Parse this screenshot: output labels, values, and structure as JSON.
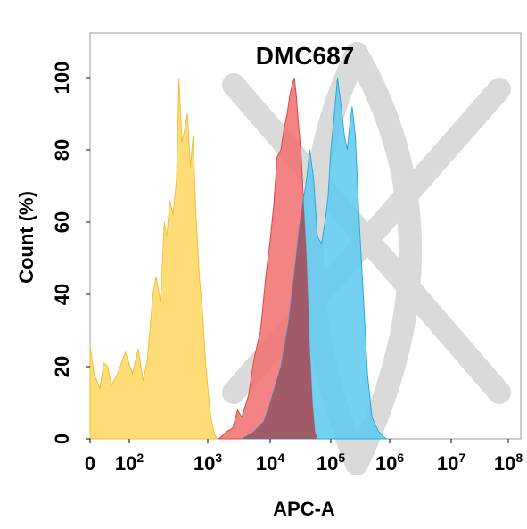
{
  "chart_data": {
    "type": "area",
    "title": "DMC687",
    "xlabel": "APC-A",
    "ylabel": "Count  (%)",
    "x_scale": "biexponential",
    "xlim": [
      0,
      100000000
    ],
    "ylim": [
      0,
      105
    ],
    "x_ticks": [
      {
        "base": "0",
        "exp": ""
      },
      {
        "base": "10",
        "exp": "2"
      },
      {
        "base": "10",
        "exp": "3"
      },
      {
        "base": "10",
        "exp": "4"
      },
      {
        "base": "10",
        "exp": "5"
      },
      {
        "base": "10",
        "exp": "6"
      },
      {
        "base": "10",
        "exp": "7"
      },
      {
        "base": "10",
        "exp": "8"
      }
    ],
    "y_ticks": [
      "0",
      "20",
      "40",
      "60",
      "80",
      "100"
    ],
    "colors": {
      "yellow": "#FFD866",
      "yellow_stroke": "#F0BE40",
      "red": "#F26D6D",
      "red_stroke": "#D84848",
      "blue": "#5CC9EE",
      "blue_stroke": "#2AA9D4",
      "overlap": "#A05A68",
      "watermark": "#BDBDBD"
    },
    "series": [
      {
        "color": "yellow",
        "points": [
          [
            0,
            26
          ],
          [
            10,
            18
          ],
          [
            25,
            14
          ],
          [
            35,
            21
          ],
          [
            45,
            20
          ],
          [
            55,
            15
          ],
          [
            70,
            18
          ],
          [
            90,
            24
          ],
          [
            110,
            18
          ],
          [
            130,
            25
          ],
          [
            150,
            16
          ],
          [
            170,
            22
          ],
          [
            200,
            40
          ],
          [
            220,
            45
          ],
          [
            250,
            38
          ],
          [
            280,
            60
          ],
          [
            300,
            56
          ],
          [
            330,
            66
          ],
          [
            360,
            62
          ],
          [
            400,
            72
          ],
          [
            430,
            100
          ],
          [
            470,
            82
          ],
          [
            500,
            85
          ],
          [
            550,
            90
          ],
          [
            600,
            75
          ],
          [
            650,
            84
          ],
          [
            700,
            64
          ],
          [
            780,
            45
          ],
          [
            850,
            36
          ],
          [
            950,
            20
          ],
          [
            1050,
            10
          ],
          [
            1150,
            5
          ],
          [
            1300,
            1
          ],
          [
            1400,
            0
          ]
        ]
      },
      {
        "color": "red",
        "points": [
          [
            1500,
            0
          ],
          [
            2000,
            2
          ],
          [
            2500,
            3
          ],
          [
            3000,
            8
          ],
          [
            3500,
            6
          ],
          [
            4500,
            12
          ],
          [
            5500,
            22
          ],
          [
            7000,
            30
          ],
          [
            8500,
            45
          ],
          [
            10000,
            55
          ],
          [
            11500,
            65
          ],
          [
            13000,
            78
          ],
          [
            15000,
            80
          ],
          [
            17000,
            86
          ],
          [
            19000,
            90
          ],
          [
            21000,
            95
          ],
          [
            23000,
            98
          ],
          [
            25000,
            100
          ],
          [
            27000,
            95
          ],
          [
            29000,
            88
          ],
          [
            32000,
            80
          ],
          [
            35000,
            68
          ],
          [
            40000,
            50
          ],
          [
            45000,
            25
          ],
          [
            50000,
            10
          ],
          [
            55000,
            2
          ],
          [
            60000,
            0
          ]
        ]
      },
      {
        "color": "blue",
        "points": [
          [
            3500,
            0
          ],
          [
            5500,
            2
          ],
          [
            8000,
            5
          ],
          [
            10000,
            10
          ],
          [
            15000,
            20
          ],
          [
            20000,
            32
          ],
          [
            25000,
            46
          ],
          [
            30000,
            58
          ],
          [
            35000,
            66
          ],
          [
            40000,
            72
          ],
          [
            45000,
            80
          ],
          [
            52000,
            72
          ],
          [
            60000,
            56
          ],
          [
            70000,
            54
          ],
          [
            80000,
            60
          ],
          [
            90000,
            67
          ],
          [
            100000,
            80
          ],
          [
            115000,
            90
          ],
          [
            130000,
            100
          ],
          [
            150000,
            92
          ],
          [
            170000,
            84
          ],
          [
            190000,
            80
          ],
          [
            210000,
            87
          ],
          [
            230000,
            92
          ],
          [
            260000,
            84
          ],
          [
            300000,
            62
          ],
          [
            350000,
            42
          ],
          [
            420000,
            18
          ],
          [
            500000,
            6
          ],
          [
            650000,
            2
          ],
          [
            800000,
            0.5
          ],
          [
            900000,
            0
          ]
        ]
      }
    ]
  }
}
